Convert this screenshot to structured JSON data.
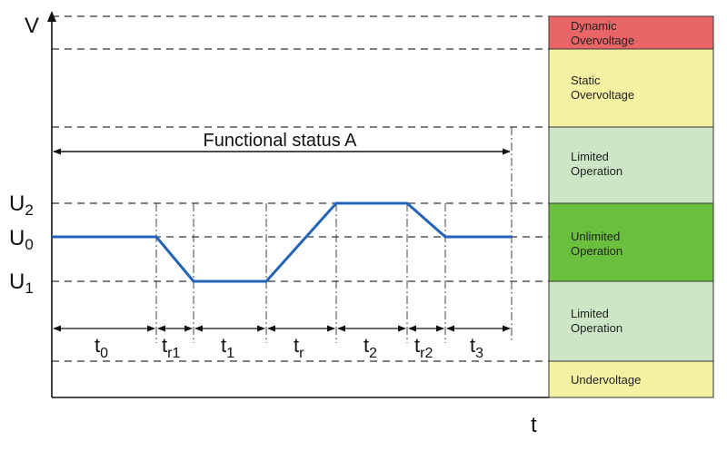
{
  "axes": {
    "y_label": "V",
    "x_label": "t"
  },
  "levels": {
    "u2": "U",
    "u2_sub": "2",
    "u0": "U",
    "u0_sub": "0",
    "u1": "U",
    "u1_sub": "1"
  },
  "functional_status": "Functional status  A",
  "intervals": [
    {
      "main": "t",
      "sub": "0"
    },
    {
      "main": "t",
      "sub": "r1"
    },
    {
      "main": "t",
      "sub": "1"
    },
    {
      "main": "t",
      "sub": "r"
    },
    {
      "main": "t",
      "sub": "2"
    },
    {
      "main": "t",
      "sub": "r2"
    },
    {
      "main": "t",
      "sub": "3"
    }
  ],
  "zones": [
    {
      "line1": "Dynamic",
      "line2": "Overvoltage",
      "color": "#e96566"
    },
    {
      "line1": "Static",
      "line2": "Overvoltage",
      "color": "#f4f1a2"
    },
    {
      "line1": "Limited",
      "line2": "Operation",
      "color": "#cde6c5"
    },
    {
      "line1": "Unlimited",
      "line2": "Operation",
      "color": "#6abf3d"
    },
    {
      "line1": "Limited",
      "line2": "Operation",
      "color": "#cde6c5"
    },
    {
      "line1": "Undervoltage",
      "line2": "",
      "color": "#f4f1a2"
    }
  ],
  "colors": {
    "waveform": "#2563b8",
    "lines": "#111111"
  }
}
